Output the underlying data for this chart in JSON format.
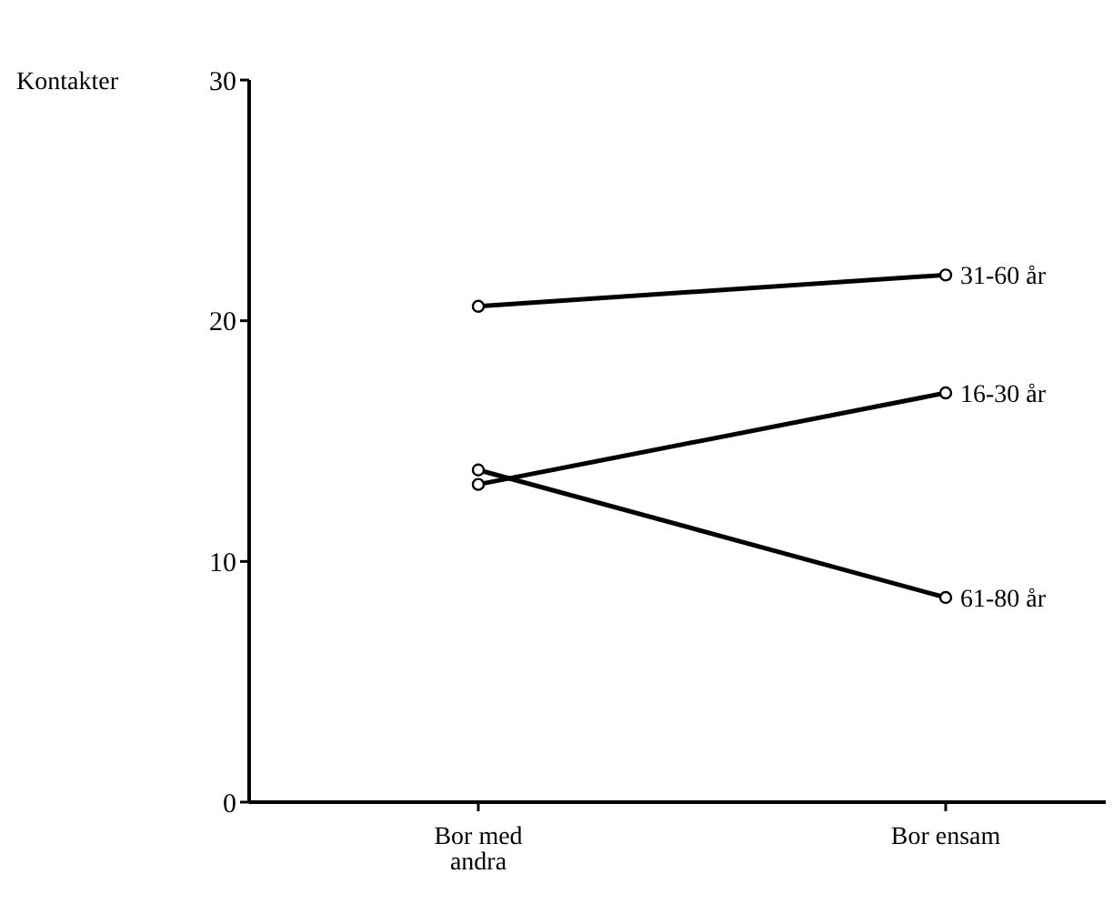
{
  "chart_data": {
    "type": "line",
    "ylabel": "Kontakter",
    "categories": [
      "Bor med andra",
      "Bor ensam"
    ],
    "series": [
      {
        "name": "31-60 år",
        "color": "#000000",
        "values": [
          20.6,
          21.9
        ]
      },
      {
        "name": "16-30 år",
        "color": "#000000",
        "values": [
          13.2,
          17.0
        ]
      },
      {
        "name": "61-80 år",
        "color": "#000000",
        "values": [
          13.8,
          8.5
        ]
      }
    ],
    "ylim": [
      0,
      30
    ],
    "yticks": [
      0,
      10,
      20,
      30
    ],
    "grid": false,
    "legend": false,
    "marker": "circle",
    "line_style": "solid"
  }
}
